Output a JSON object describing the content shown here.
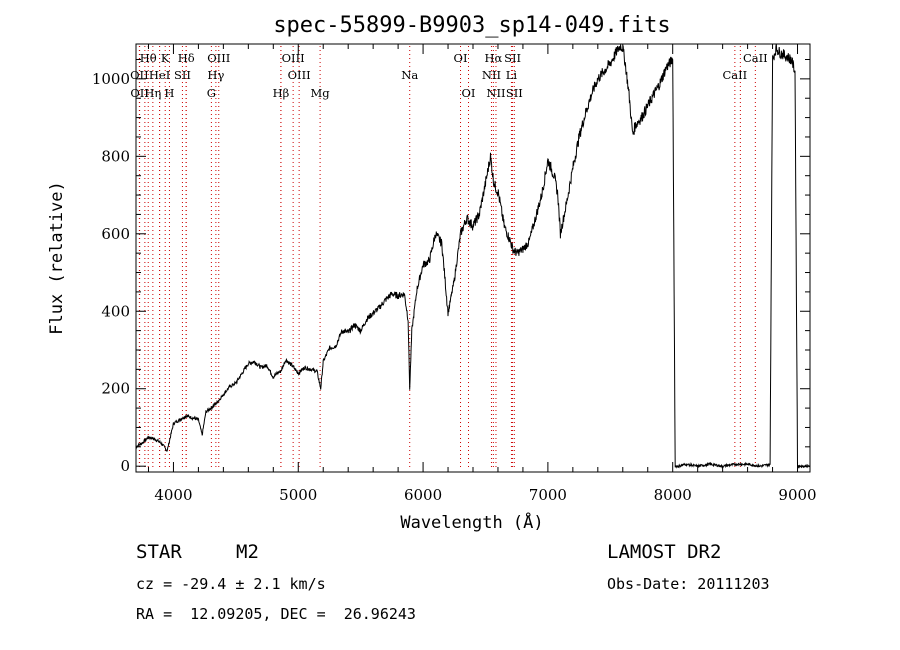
{
  "chart_data": {
    "type": "line",
    "title": "spec-55899-B9903_sp14-049.fits",
    "xlabel": "Wavelength (Å)",
    "ylabel": "Flux (relative)",
    "xlim": [
      3700,
      9100
    ],
    "ylim": [
      -15,
      1090
    ],
    "x_ticks": [
      4000,
      5000,
      6000,
      7000,
      8000,
      9000
    ],
    "y_ticks": [
      0,
      200,
      400,
      600,
      800,
      1000
    ],
    "grid": false,
    "legend": "none",
    "series": [
      {
        "name": "",
        "x": [
          3700,
          3750,
          3800,
          3850,
          3900,
          3950,
          4000,
          4050,
          4100,
          4150,
          4200,
          4230,
          4260,
          4300,
          4350,
          4400,
          4450,
          4500,
          4550,
          4600,
          4650,
          4700,
          4750,
          4800,
          4830,
          4860,
          4900,
          4950,
          5000,
          5050,
          5100,
          5150,
          5180,
          5200,
          5250,
          5300,
          5350,
          5400,
          5450,
          5500,
          5550,
          5600,
          5650,
          5700,
          5750,
          5800,
          5850,
          5880,
          5893,
          5910,
          5950,
          6000,
          6050,
          6100,
          6150,
          6200,
          6250,
          6300,
          6350,
          6400,
          6450,
          6500,
          6520,
          6540,
          6563,
          6580,
          6600,
          6650,
          6700,
          6720,
          6750,
          6800,
          6850,
          6900,
          6950,
          7000,
          7050,
          7080,
          7100,
          7150,
          7200,
          7250,
          7300,
          7350,
          7400,
          7450,
          7500,
          7550,
          7580,
          7600,
          7620,
          7650,
          7680,
          7700,
          7750,
          7800,
          7850,
          7900,
          7950,
          8000,
          8020,
          8050,
          8100,
          8200,
          8300,
          8400,
          8500,
          8600,
          8700,
          8780,
          8800,
          8830,
          8850,
          8900,
          8950,
          8980,
          9000,
          9010,
          9050,
          9100
        ],
        "y": [
          50,
          60,
          75,
          70,
          60,
          40,
          110,
          120,
          130,
          125,
          120,
          80,
          140,
          150,
          165,
          185,
          205,
          215,
          240,
          265,
          270,
          255,
          260,
          230,
          240,
          245,
          275,
          260,
          240,
          255,
          250,
          245,
          200,
          270,
          305,
          310,
          350,
          345,
          365,
          350,
          380,
          395,
          410,
          430,
          445,
          440,
          445,
          380,
          200,
          350,
          455,
          520,
          530,
          600,
          575,
          395,
          480,
          600,
          640,
          620,
          650,
          730,
          765,
          800,
          740,
          720,
          710,
          620,
          580,
          560,
          550,
          560,
          580,
          640,
          700,
          790,
          750,
          700,
          600,
          680,
          770,
          850,
          910,
          960,
          1000,
          1020,
          1040,
          1070,
          1085,
          1080,
          1040,
          960,
          855,
          880,
          900,
          930,
          960,
          990,
          1030,
          1050,
          0,
          0,
          5,
          0,
          5,
          0,
          5,
          5,
          0,
          5,
          1050,
          1080,
          1070,
          1060,
          1050,
          1020,
          0,
          0,
          0,
          0
        ]
      }
    ],
    "line_markers": [
      {
        "label": "Hθ",
        "x": 3798,
        "row": 1
      },
      {
        "label": "K",
        "x": 3934,
        "row": 1
      },
      {
        "label": "Hδ",
        "x": 4102,
        "row": 1
      },
      {
        "label": "OIII",
        "x": 4363,
        "row": 1
      },
      {
        "label": "OIII",
        "x": 4959,
        "row": 1
      },
      {
        "label": "OI",
        "x": 6300,
        "row": 1
      },
      {
        "label": "Hα",
        "x": 6563,
        "row": 1
      },
      {
        "label": "SII",
        "x": 6717,
        "row": 1
      },
      {
        "label": "CaII",
        "x": 8662,
        "row": 1
      },
      {
        "label": "OII",
        "x": 3727,
        "row": 2
      },
      {
        "label": "HeI",
        "x": 3889,
        "row": 2
      },
      {
        "label": "SII",
        "x": 4072,
        "row": 2
      },
      {
        "label": "Hγ",
        "x": 4340,
        "row": 2
      },
      {
        "label": "OIII",
        "x": 5007,
        "row": 2
      },
      {
        "label": "Na",
        "x": 5893,
        "row": 2
      },
      {
        "label": "NII",
        "x": 6548,
        "row": 2
      },
      {
        "label": "Li",
        "x": 6708,
        "row": 2
      },
      {
        "label": "CaII",
        "x": 8498,
        "row": 2
      },
      {
        "label": "OII",
        "x": 3729,
        "row": 3
      },
      {
        "label": "Hη",
        "x": 3835,
        "row": 3
      },
      {
        "label": "H",
        "x": 3968,
        "row": 3
      },
      {
        "label": "G",
        "x": 4304,
        "row": 3
      },
      {
        "label": "Hβ",
        "x": 4861,
        "row": 3
      },
      {
        "label": "Mg",
        "x": 5175,
        "row": 3
      },
      {
        "label": "OI",
        "x": 6364,
        "row": 3
      },
      {
        "label": "NII",
        "x": 6584,
        "row": 3
      },
      {
        "label": "SII",
        "x": 6731,
        "row": 3
      }
    ],
    "extra_marker_lines": [
      3771,
      3889,
      4102,
      4861,
      8542
    ]
  },
  "info": {
    "object_class": "STAR",
    "subclass": "M2",
    "survey": "LAMOST DR2",
    "cz": "cz = -29.4 ± 2.1 km/s",
    "obs_date": "Obs-Date: 20111203",
    "coords": "RA =  12.09205, DEC =  26.96243"
  },
  "colors": {
    "marker_line": "#cc0000",
    "spectrum": "#000000"
  }
}
